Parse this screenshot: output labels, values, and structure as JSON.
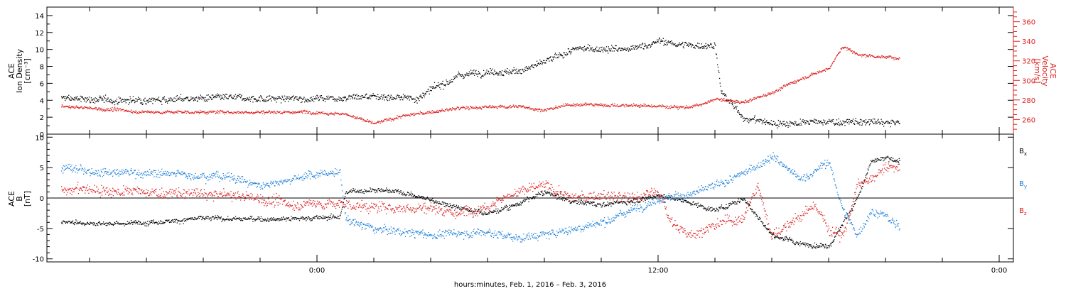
{
  "chart_data": [
    {
      "type": "scatter",
      "panel": "top",
      "ylabel_lines": [
        "ACE",
        "Ion Density",
        "[cm⁻³]"
      ],
      "ylim": [
        0,
        15
      ],
      "yticks": [
        0,
        2,
        4,
        6,
        8,
        10,
        12,
        14
      ],
      "ytick_labels": [
        "0",
        "2",
        "4",
        "6",
        "8",
        "10",
        "12",
        "14"
      ],
      "y2label_lines": [
        "ACE",
        "Velocity",
        "[km/s]"
      ],
      "y2lim": [
        245,
        375
      ],
      "y2ticks": [
        260,
        280,
        300,
        320,
        340,
        360
      ],
      "y2tick_labels": [
        "260",
        "280",
        "300",
        "320",
        "340",
        "360"
      ],
      "series": [
        {
          "key": "density",
          "color": "#000000",
          "axis": "left",
          "knots": [
            [
              -9,
              4.3
            ],
            [
              -7,
              4.0
            ],
            [
              -5,
              4.2
            ],
            [
              -3,
              4.3
            ],
            [
              -1,
              4.2
            ],
            [
              0,
              4.3
            ],
            [
              2,
              4.5
            ],
            [
              3.5,
              4.3
            ],
            [
              5,
              7
            ],
            [
              6,
              7.5
            ],
            [
              7,
              7.4
            ],
            [
              8,
              8.5
            ],
            [
              9,
              10
            ],
            [
              10,
              10.2
            ],
            [
              11,
              10.0
            ],
            [
              12,
              11
            ],
            [
              13,
              10.5
            ],
            [
              14,
              10.6
            ],
            [
              14.2,
              5
            ],
            [
              15,
              2
            ],
            [
              16,
              1.3
            ],
            [
              18,
              1.5
            ],
            [
              20,
              1.4
            ]
          ],
          "noise": 0.6
        },
        {
          "key": "velocity",
          "color": "#dd2020",
          "axis": "right",
          "knots": [
            [
              -9,
              274
            ],
            [
              -6,
              268
            ],
            [
              -4,
              268
            ],
            [
              -2,
              268
            ],
            [
              0,
              268
            ],
            [
              1,
              266
            ],
            [
              2,
              256
            ],
            [
              3,
              264
            ],
            [
              4,
              268
            ],
            [
              5,
              272
            ],
            [
              7,
              274
            ],
            [
              8,
              270
            ],
            [
              9,
              276
            ],
            [
              12,
              274
            ],
            [
              13,
              273
            ],
            [
              13.5,
              275
            ],
            [
              14,
              281
            ],
            [
              15,
              278
            ],
            [
              16,
              288
            ],
            [
              17,
              302
            ],
            [
              18,
              313
            ],
            [
              18.5,
              335
            ],
            [
              19,
              327
            ],
            [
              20,
              324
            ],
            [
              20.5,
              323
            ]
          ],
          "noise": 2.5
        }
      ]
    },
    {
      "type": "scatter",
      "panel": "bottom",
      "ylabel_lines": [
        "ACE",
        "B",
        "[nT]"
      ],
      "ylim": [
        -10.5,
        10.5
      ],
      "yticks": [
        -10,
        -5,
        0,
        5,
        10
      ],
      "ytick_labels": [
        "-10",
        "-5",
        "0",
        "5",
        "10"
      ],
      "zero_line": true,
      "legend_position": "right",
      "series": [
        {
          "key": "bx",
          "name": "B",
          "subscript": "x",
          "color": "#000000",
          "knots": [
            [
              -9,
              -3.8
            ],
            [
              -7,
              -4.2
            ],
            [
              -4,
              -3.3
            ],
            [
              -2,
              -3.4
            ],
            [
              0,
              -3.2
            ],
            [
              0.8,
              -3.0
            ],
            [
              1,
              1.0
            ],
            [
              2,
              1.5
            ],
            [
              3,
              1.0
            ],
            [
              5,
              -1.5
            ],
            [
              6,
              -2.5
            ],
            [
              7,
              -1.0
            ],
            [
              8,
              1.0
            ],
            [
              9,
              -0.5
            ],
            [
              10,
              -1.0
            ],
            [
              11,
              -0.5
            ],
            [
              12,
              0.5
            ],
            [
              13,
              -0.5
            ],
            [
              14,
              -2.0
            ],
            [
              15,
              0
            ],
            [
              15.5,
              -3
            ],
            [
              16,
              -6
            ],
            [
              17,
              -7.5
            ],
            [
              18,
              -7.8
            ],
            [
              18.5,
              -4
            ],
            [
              19,
              0
            ],
            [
              19.5,
              6
            ],
            [
              20,
              6.5
            ],
            [
              20.5,
              6.2
            ]
          ],
          "noise": 0.6
        },
        {
          "key": "by",
          "name": "B",
          "subscript": "y",
          "color": "#1c7fd8",
          "knots": [
            [
              -9,
              4.9
            ],
            [
              -7,
              4.3
            ],
            [
              -5,
              4.0
            ],
            [
              -4,
              3.8
            ],
            [
              -3,
              3.5
            ],
            [
              -2,
              2.0
            ],
            [
              -1,
              3.2
            ],
            [
              0,
              4.0
            ],
            [
              0.8,
              4.3
            ],
            [
              1,
              -3.5
            ],
            [
              2,
              -5
            ],
            [
              4,
              -6
            ],
            [
              6,
              -5.5
            ],
            [
              7,
              -6.5
            ],
            [
              8,
              -6
            ],
            [
              9,
              -5
            ],
            [
              10,
              -4
            ],
            [
              11,
              -2
            ],
            [
              12,
              0
            ],
            [
              13,
              0.5
            ],
            [
              14,
              2
            ],
            [
              15,
              4
            ],
            [
              16,
              7
            ],
            [
              17,
              3
            ],
            [
              18,
              6
            ],
            [
              18.5,
              -2
            ],
            [
              19,
              -6
            ],
            [
              19.5,
              -2
            ],
            [
              20,
              -3
            ],
            [
              20.5,
              -5
            ]
          ],
          "noise": 1.0
        },
        {
          "key": "bz",
          "name": "B",
          "subscript": "z",
          "color": "#dd2020",
          "knots": [
            [
              -9,
              1.7
            ],
            [
              -7,
              1.2
            ],
            [
              -5,
              0.8
            ],
            [
              -3,
              0.5
            ],
            [
              -2,
              0.0
            ],
            [
              -1,
              -1.0
            ],
            [
              0,
              -0.8
            ],
            [
              1,
              -1.0
            ],
            [
              2,
              -1.5
            ],
            [
              3,
              -1.5
            ],
            [
              4,
              -1.5
            ],
            [
              5,
              -2.5
            ],
            [
              6,
              -1.0
            ],
            [
              7,
              1.0
            ],
            [
              8,
              2.0
            ],
            [
              9,
              0.0
            ],
            [
              10,
              0.5
            ],
            [
              11,
              0.0
            ],
            [
              12,
              1.0
            ],
            [
              12.5,
              -4
            ],
            [
              13,
              -6
            ],
            [
              14,
              -4.5
            ],
            [
              15,
              -3
            ],
            [
              15.5,
              2
            ],
            [
              16,
              -6
            ],
            [
              17,
              -3
            ],
            [
              17.5,
              -1
            ],
            [
              18,
              -5
            ],
            [
              18.5,
              -6
            ],
            [
              19,
              2
            ],
            [
              19.5,
              3
            ],
            [
              20,
              5
            ],
            [
              20.5,
              5
            ]
          ],
          "noise": 1.3
        }
      ]
    }
  ],
  "x_axis": {
    "xlim": [
      -9.5,
      24.5
    ],
    "major_ticks": [
      0,
      12,
      24
    ],
    "major_tick_labels": [
      "0:00",
      "12:00",
      "0:00"
    ],
    "minor_step": 2,
    "xlabel": "hours:minutes, Feb.  1, 2016 – Feb.  3, 2016"
  },
  "data_end_hour": 20.5
}
